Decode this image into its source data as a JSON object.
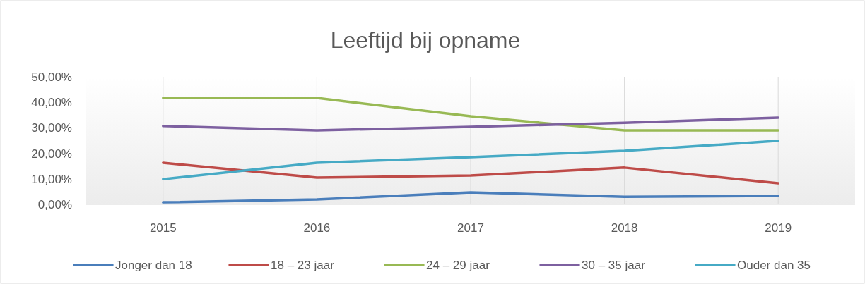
{
  "chart_data": {
    "type": "line",
    "title": "Leeftijd bij opname",
    "categories": [
      "2015",
      "2016",
      "2017",
      "2018",
      "2019"
    ],
    "series": [
      {
        "name": "Jonger dan 18",
        "color": "#4a7ebb",
        "values": [
          0.8,
          1.9,
          4.7,
          3.0,
          3.3
        ]
      },
      {
        "name": "18 – 23 jaar",
        "color": "#be4b48",
        "values": [
          16.3,
          10.5,
          11.3,
          14.4,
          8.3
        ]
      },
      {
        "name": "24 – 29 jaar",
        "color": "#98b954",
        "values": [
          41.7,
          41.7,
          34.5,
          29.0,
          29.0
        ]
      },
      {
        "name": "30 – 35 jaar",
        "color": "#7d60a0",
        "values": [
          30.7,
          29.0,
          30.4,
          32.0,
          34.0
        ]
      },
      {
        "name": "Ouder dan 35",
        "color": "#46aac5",
        "values": [
          9.9,
          16.3,
          18.5,
          21.0,
          24.9
        ]
      }
    ],
    "ylim": [
      0,
      50
    ],
    "yticks": [
      {
        "value": 0,
        "label": "0,00%"
      },
      {
        "value": 10,
        "label": "10,00%"
      },
      {
        "value": 20,
        "label": "20,00%"
      },
      {
        "value": 30,
        "label": "30,00%"
      },
      {
        "value": 40,
        "label": "40,00%"
      },
      {
        "value": 50,
        "label": "50,00%"
      }
    ],
    "grid": "x",
    "legend": "bottom",
    "marker": "none",
    "line_style": "solid"
  }
}
